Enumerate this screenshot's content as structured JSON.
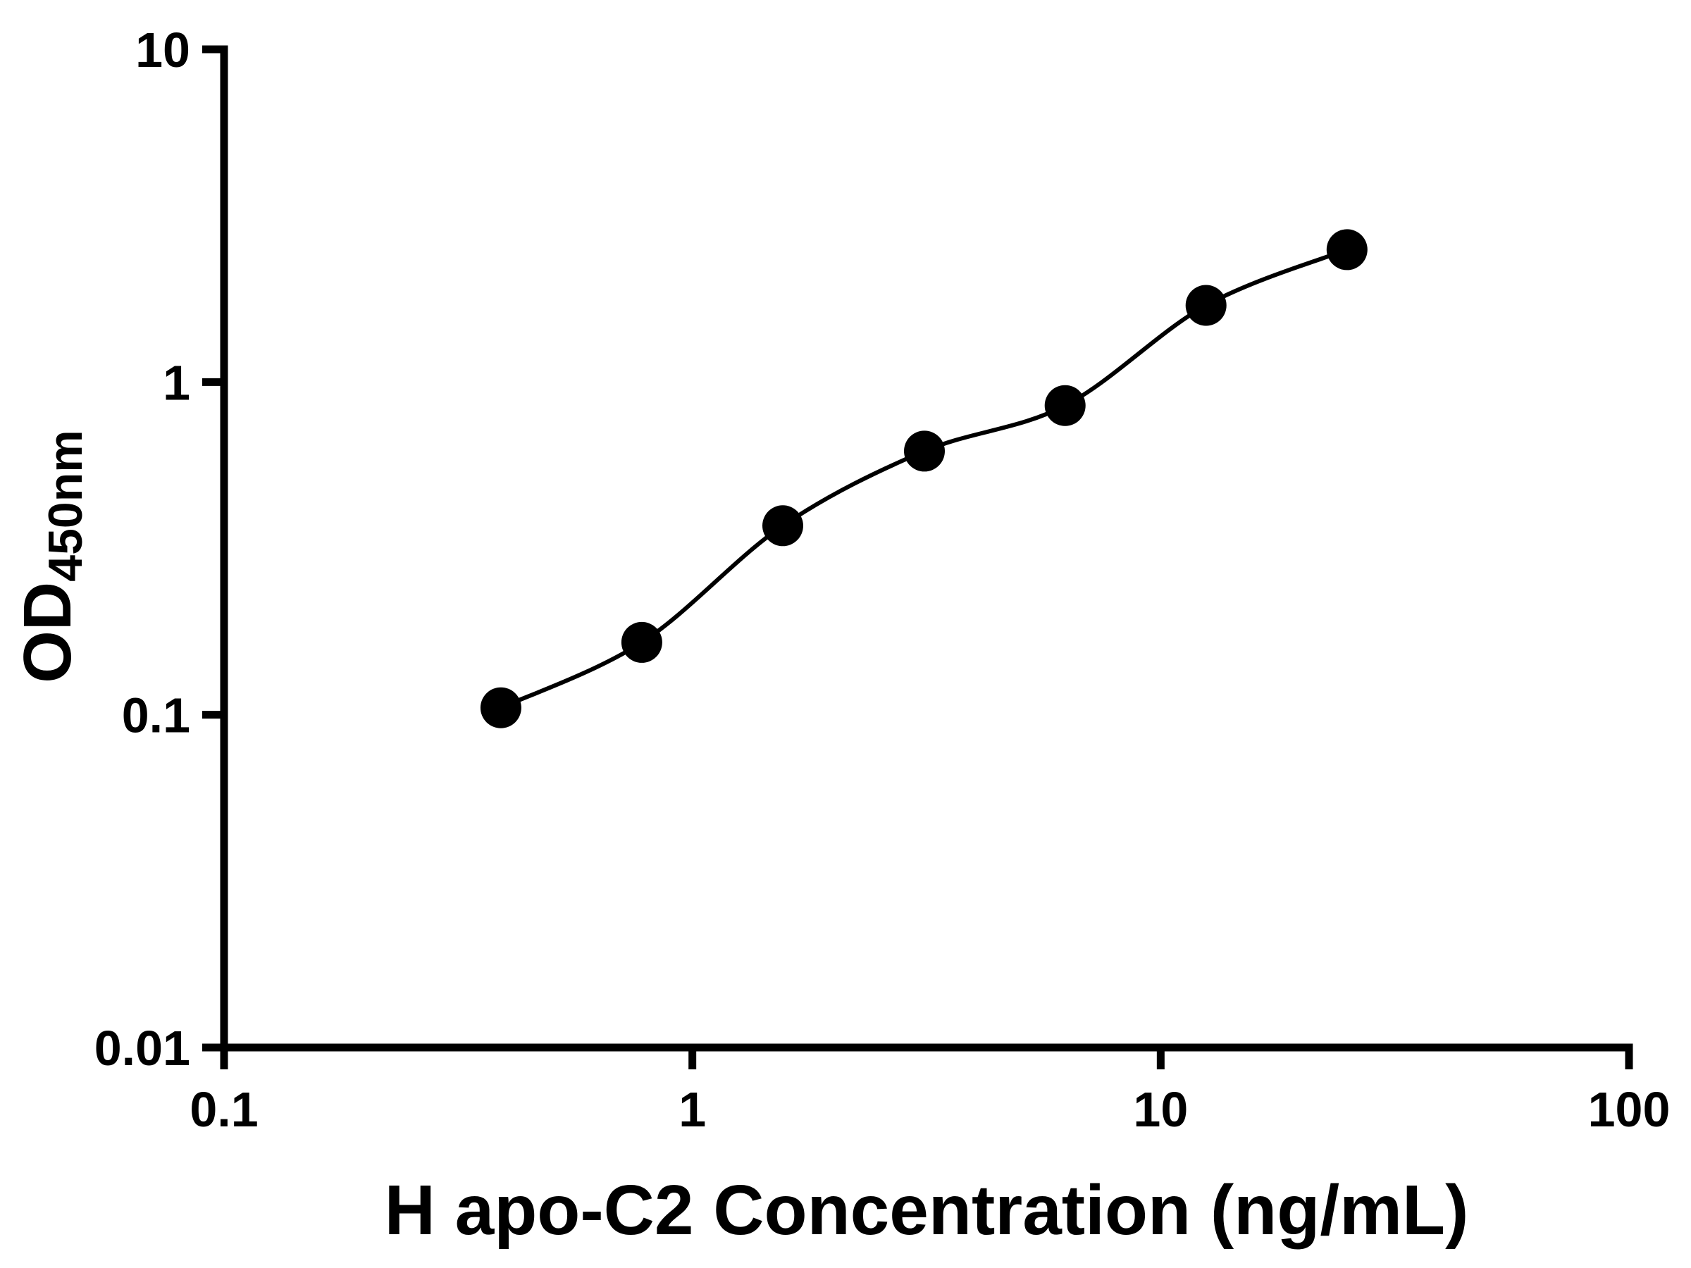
{
  "chart_data": {
    "type": "scatter",
    "title": "",
    "xlabel": "H apo-C2 Concentration (ng/mL)",
    "ylabel": "OD450nm",
    "ylabel_main": "OD",
    "ylabel_sub": "450nm",
    "xscale": "log",
    "yscale": "log",
    "xlim": [
      0.1,
      100
    ],
    "ylim": [
      0.01,
      10
    ],
    "x_tick_values": [
      0.1,
      1,
      10,
      100
    ],
    "x_tick_labels": [
      "0.1",
      "1",
      "10",
      "100"
    ],
    "y_tick_values": [
      0.01,
      0.1,
      1,
      10
    ],
    "y_tick_labels": [
      "0.01",
      "0.1",
      "1",
      "10"
    ],
    "grid": false,
    "legend": false,
    "background_color": "#ffffff",
    "axis_color": "#000000",
    "marker_color": "#000000",
    "curve_color": "#000000",
    "series_name": "standard-curve",
    "points": [
      {
        "x": 0.39,
        "y": 0.105
      },
      {
        "x": 0.78,
        "y": 0.165
      },
      {
        "x": 1.56,
        "y": 0.37
      },
      {
        "x": 3.13,
        "y": 0.62
      },
      {
        "x": 6.25,
        "y": 0.85
      },
      {
        "x": 12.5,
        "y": 1.7
      },
      {
        "x": 25,
        "y": 2.5
      }
    ]
  }
}
